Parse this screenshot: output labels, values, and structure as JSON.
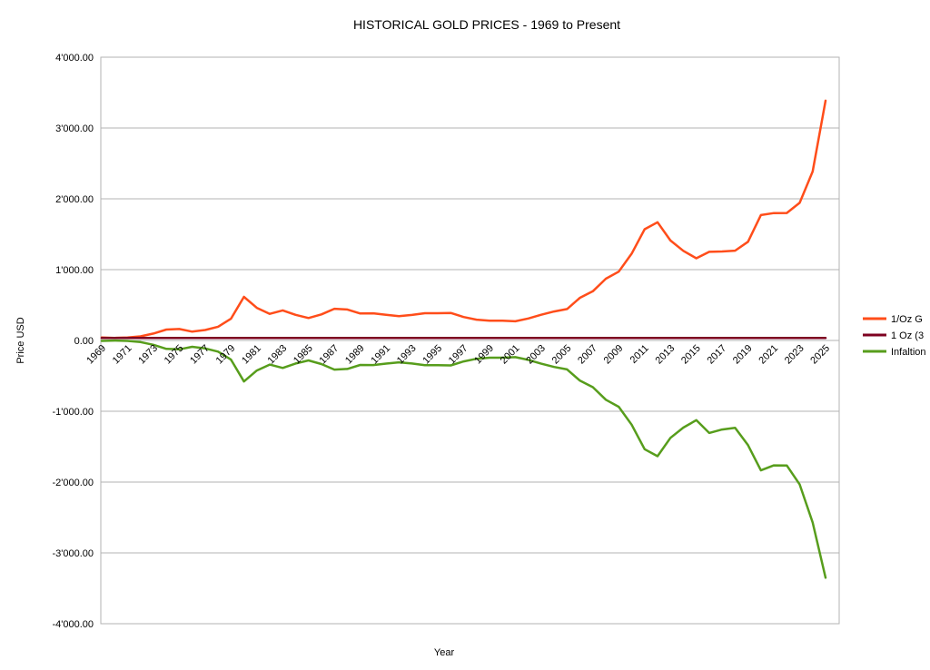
{
  "chart_data": {
    "type": "line",
    "title": "HISTORICAL GOLD PRICES - 1969 to Present",
    "xlabel": "Year",
    "ylabel": "Price USD",
    "ylim": [
      -4000,
      4000
    ],
    "ytick_step": 1000,
    "ytick_labels": [
      "4'000.00",
      "3'000.00",
      "2'000.00",
      "1'000.00",
      "0.00",
      "-1'000.00",
      "-2'000.00",
      "-3'000.00",
      "-4'000.00"
    ],
    "grid": true,
    "legend_position": "right",
    "x": [
      1969,
      1970,
      1971,
      1972,
      1973,
      1974,
      1975,
      1976,
      1977,
      1978,
      1979,
      1980,
      1981,
      1982,
      1983,
      1984,
      1985,
      1986,
      1987,
      1988,
      1989,
      1990,
      1991,
      1992,
      1993,
      1994,
      1995,
      1996,
      1997,
      1998,
      1999,
      2000,
      2001,
      2002,
      2003,
      2004,
      2005,
      2006,
      2007,
      2008,
      2009,
      2010,
      2011,
      2012,
      2013,
      2014,
      2015,
      2016,
      2017,
      2018,
      2019,
      2020,
      2021,
      2022,
      2023,
      2024,
      2025
    ],
    "xtick_labels": [
      "1969",
      "1971",
      "1973",
      "1975",
      "1977",
      "1979",
      "1981",
      "1983",
      "1985",
      "1987",
      "1989",
      "1991",
      "1993",
      "1995",
      "1997",
      "1999",
      "2001",
      "2003",
      "2005",
      "2007",
      "2009",
      "2011",
      "2013",
      "2015",
      "2017",
      "2019",
      "2021",
      "2023",
      "2025"
    ],
    "series": [
      {
        "name": "1/Oz G",
        "color": "#ff4d1a",
        "values": [
          41,
          36,
          41,
          58,
          97,
          154,
          161,
          125,
          148,
          193,
          306,
          615,
          460,
          376,
          424,
          361,
          317,
          368,
          447,
          437,
          381,
          383,
          362,
          344,
          360,
          384,
          384,
          388,
          331,
          294,
          279,
          279,
          271,
          310,
          363,
          409,
          444,
          603,
          695,
          872,
          972,
          1225,
          1571,
          1669,
          1411,
          1266,
          1160,
          1251,
          1257,
          1268,
          1393,
          1770,
          1799,
          1800,
          1943,
          2386,
          3386
        ]
      },
      {
        "name": "1 Oz (3",
        "color": "#7e0021",
        "values": [
          35,
          35,
          35,
          35,
          35,
          35,
          35,
          35,
          35,
          35,
          35,
          35,
          35,
          35,
          35,
          35,
          35,
          35,
          35,
          35,
          35,
          35,
          35,
          35,
          35,
          35,
          35,
          35,
          35,
          35,
          35,
          35,
          35,
          35,
          35,
          35,
          35,
          35,
          35,
          35,
          35,
          35,
          35,
          35,
          35,
          35,
          35,
          35,
          35,
          35,
          35,
          35,
          35,
          35,
          35,
          35,
          35
        ]
      },
      {
        "name": "Infaltion",
        "color": "#579d1c",
        "values": [
          -6,
          -1,
          -6,
          -23,
          -62,
          -119,
          -126,
          -90,
          -113,
          -158,
          -271,
          -580,
          -425,
          -341,
          -389,
          -326,
          -282,
          -333,
          -412,
          -402,
          -346,
          -348,
          -327,
          -309,
          -325,
          -349,
          -349,
          -353,
          -296,
          -259,
          -244,
          -244,
          -236,
          -275,
          -328,
          -374,
          -409,
          -568,
          -660,
          -837,
          -937,
          -1190,
          -1536,
          -1634,
          -1376,
          -1231,
          -1125,
          -1306,
          -1258,
          -1233,
          -1478,
          -1835,
          -1764,
          -1765,
          -2033,
          -2570,
          -3350
        ]
      }
    ]
  }
}
